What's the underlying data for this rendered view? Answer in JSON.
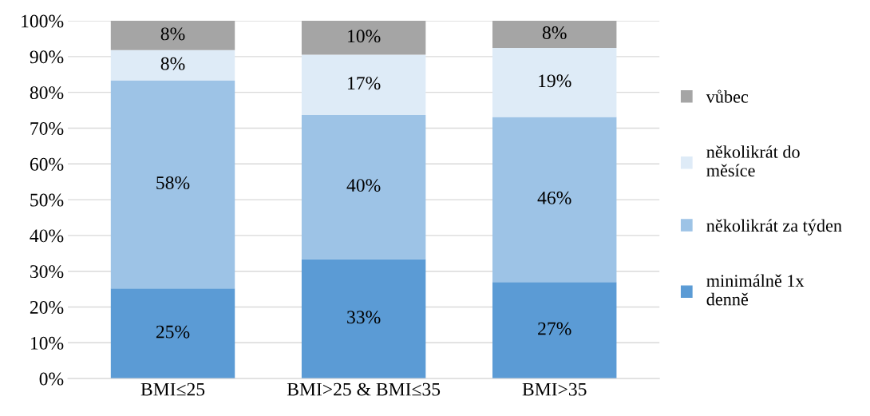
{
  "chart_data": {
    "type": "bar",
    "stacked": true,
    "categories": [
      "BMI≤25",
      "BMI>25 & BMI≤35",
      "BMI>35"
    ],
    "series": [
      {
        "name": "minimálně 1x\ndenně",
        "color": "#5b9bd5",
        "values": [
          25.2,
          33.4,
          27.0
        ],
        "value_labels": [
          "25%",
          "33%",
          "27%"
        ]
      },
      {
        "name": "několikrát za týden",
        "color": "#9dc3e6",
        "values": [
          58.1,
          40.3,
          46.1
        ],
        "value_labels": [
          "58%",
          "40%",
          "46%"
        ]
      },
      {
        "name": "několikrát do\nměsíce",
        "color": "#deebf7",
        "values": [
          8.5,
          16.8,
          19.3
        ],
        "value_labels": [
          "8%",
          "17%",
          "19%"
        ]
      },
      {
        "name": "vůbec",
        "color": "#a5a5a5",
        "values": [
          8.2,
          9.5,
          7.6
        ],
        "value_labels": [
          "8%",
          "10%",
          "8%"
        ]
      }
    ],
    "ylim": [
      0,
      100
    ],
    "yticks": [
      {
        "value": 0,
        "label": "0%"
      },
      {
        "value": 10,
        "label": "10%"
      },
      {
        "value": 20,
        "label": "20%"
      },
      {
        "value": 30,
        "label": "30%"
      },
      {
        "value": 40,
        "label": "40%"
      },
      {
        "value": 50,
        "label": "50%"
      },
      {
        "value": 60,
        "label": "60%"
      },
      {
        "value": 70,
        "label": "70%"
      },
      {
        "value": 80,
        "label": "80%"
      },
      {
        "value": 90,
        "label": "90%"
      },
      {
        "value": 100,
        "label": "100%"
      }
    ],
    "grid": "y",
    "legend": "right"
  }
}
